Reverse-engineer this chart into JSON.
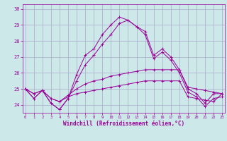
{
  "xlabel": "Windchill (Refroidissement éolien,°C)",
  "bg_color": "#cce8e8",
  "grid_color": "#aaaacc",
  "line_color": "#990099",
  "hours": [
    0,
    1,
    2,
    3,
    4,
    5,
    6,
    7,
    8,
    9,
    10,
    11,
    12,
    13,
    14,
    15,
    16,
    17,
    18,
    19,
    20,
    21,
    22,
    23
  ],
  "series1": [
    25.0,
    24.4,
    24.9,
    24.1,
    23.7,
    24.4,
    25.9,
    27.1,
    27.5,
    28.4,
    29.0,
    29.5,
    29.3,
    28.9,
    28.6,
    27.1,
    27.5,
    27.0,
    26.2,
    25.0,
    24.7,
    24.1,
    24.7,
    24.7
  ],
  "series2": [
    25.0,
    24.4,
    24.9,
    24.1,
    23.7,
    24.4,
    25.5,
    26.5,
    27.1,
    27.8,
    28.4,
    29.1,
    29.3,
    28.9,
    28.4,
    26.9,
    27.3,
    26.8,
    26.0,
    24.8,
    24.5,
    23.9,
    24.4,
    24.5
  ],
  "series3": [
    25.0,
    24.7,
    24.9,
    24.4,
    24.2,
    24.6,
    25.0,
    25.3,
    25.5,
    25.6,
    25.8,
    25.9,
    26.0,
    26.1,
    26.2,
    26.2,
    26.2,
    26.2,
    26.2,
    25.1,
    25.0,
    24.9,
    24.8,
    24.7
  ],
  "series4": [
    25.0,
    24.7,
    24.9,
    24.4,
    24.2,
    24.5,
    24.7,
    24.8,
    24.9,
    25.0,
    25.1,
    25.2,
    25.3,
    25.4,
    25.5,
    25.5,
    25.5,
    25.5,
    25.5,
    24.5,
    24.4,
    24.3,
    24.2,
    24.7
  ],
  "ylim": [
    23.5,
    30.3
  ],
  "yticks": [
    24,
    25,
    26,
    27,
    28,
    29,
    30
  ]
}
